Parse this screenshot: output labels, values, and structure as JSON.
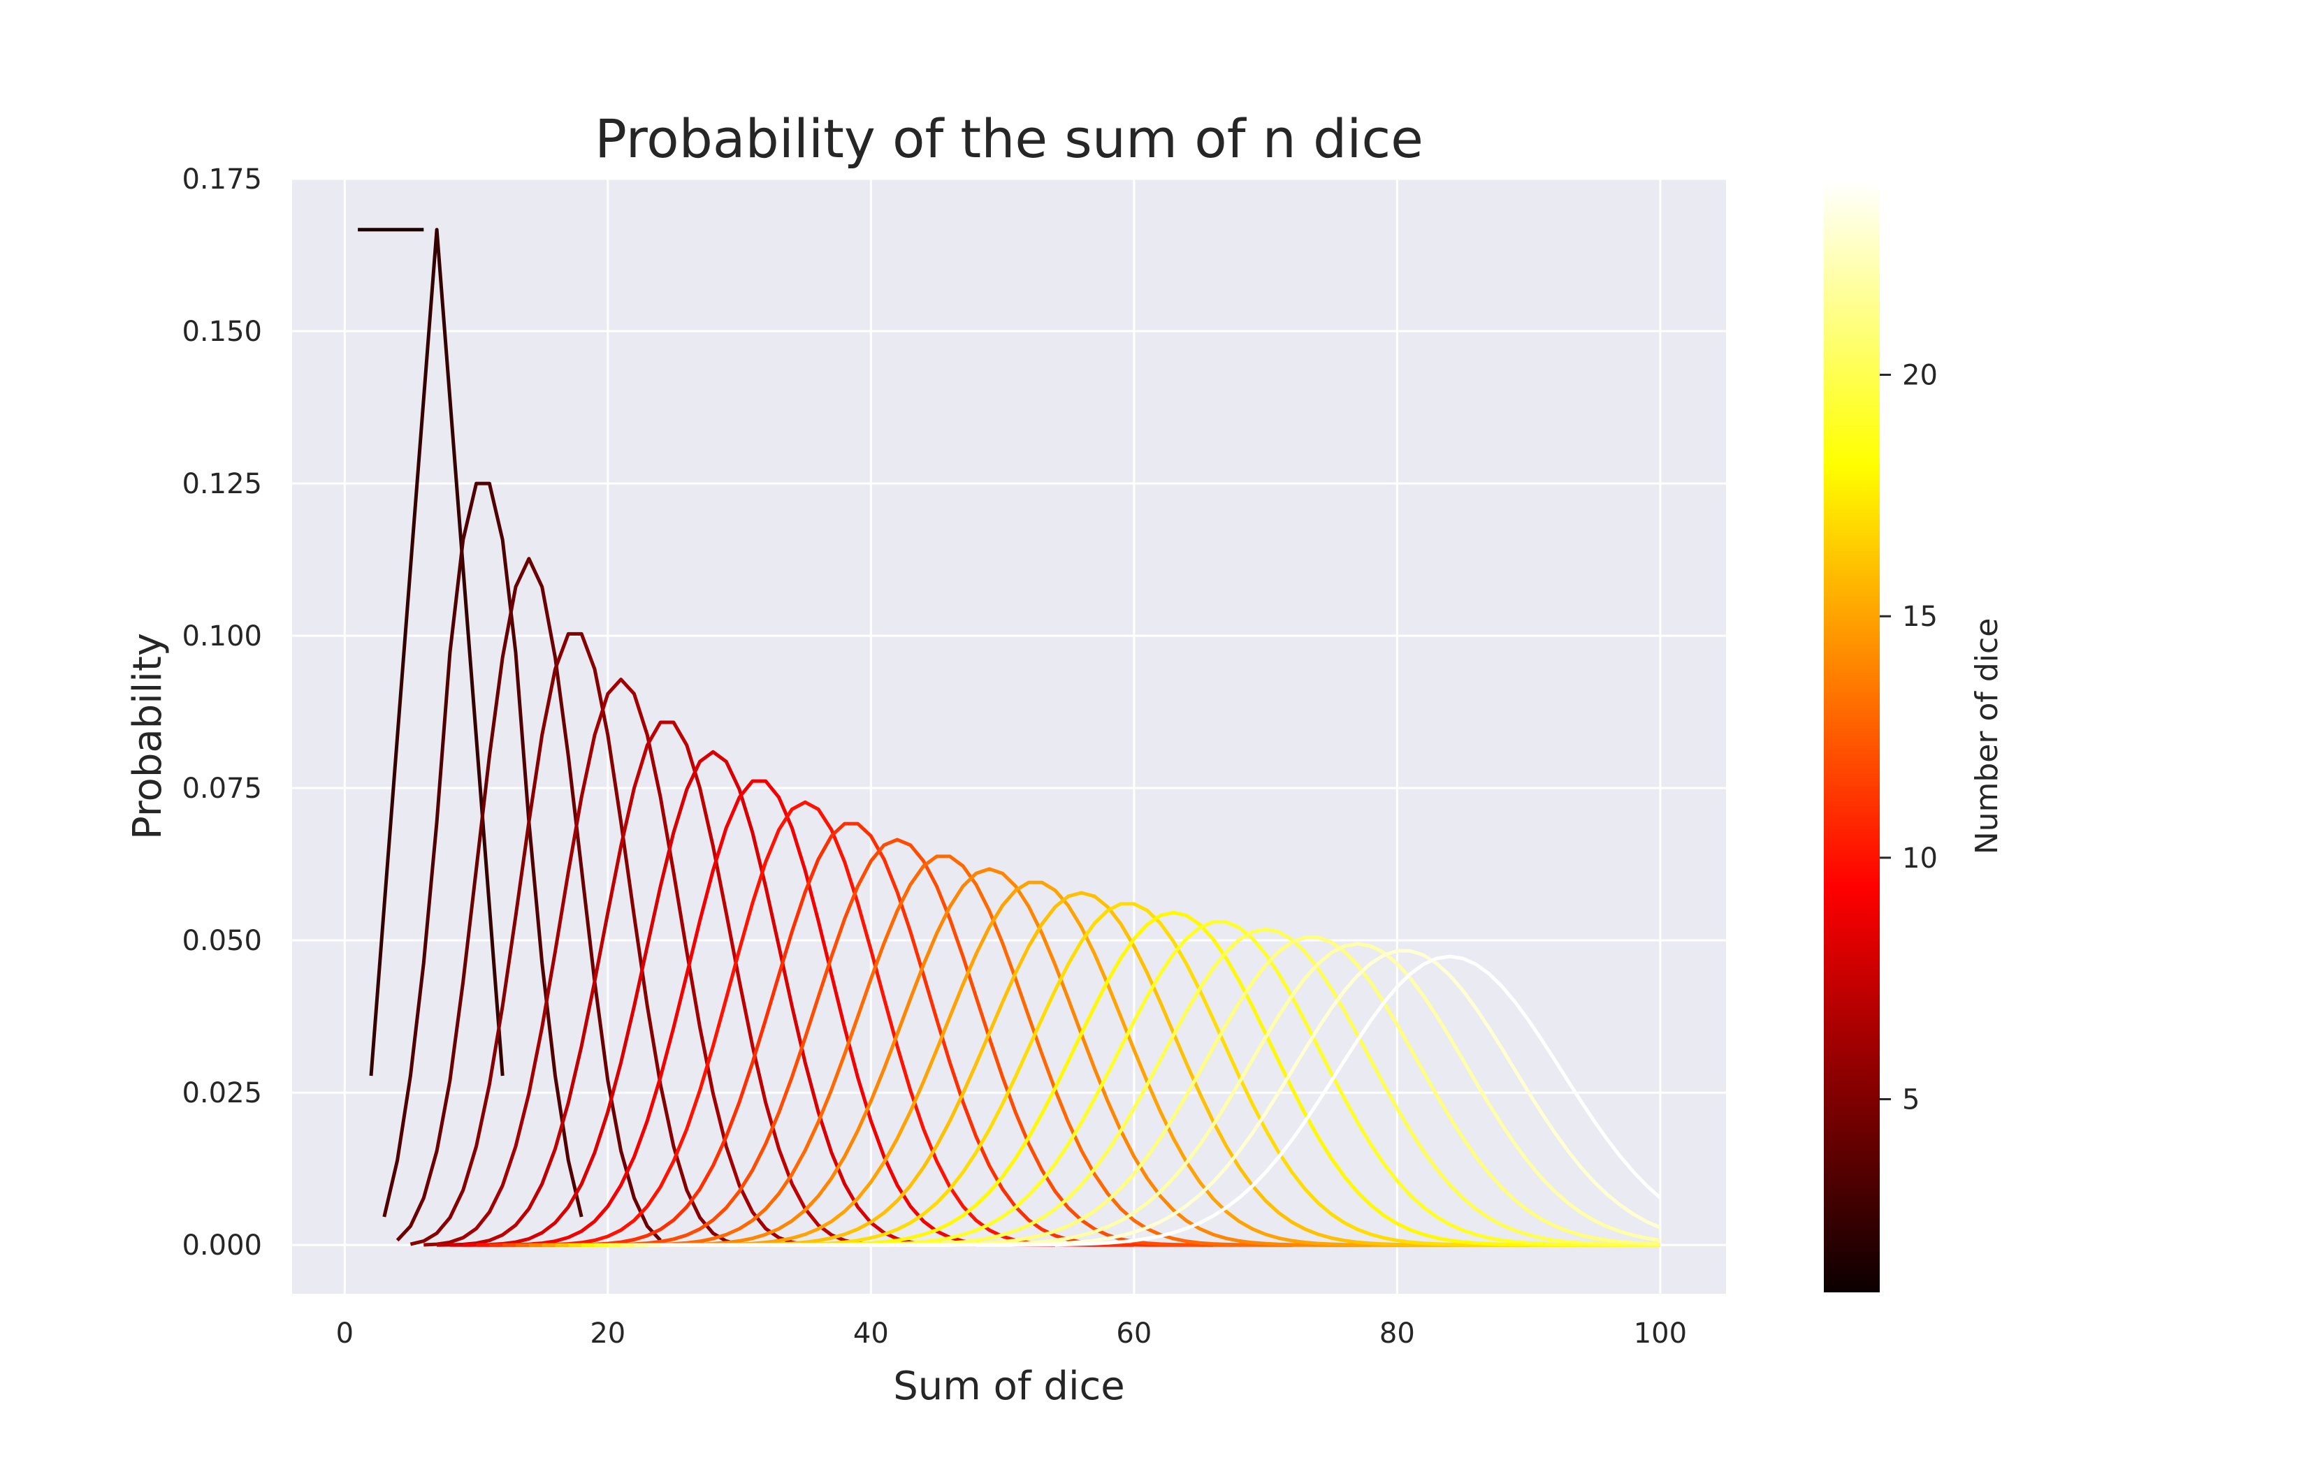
{
  "chart_data": {
    "type": "line",
    "title": "Probability of the sum of n dice",
    "xlabel": "Sum of dice",
    "ylabel": "Probability",
    "xlim": [
      -4,
      105
    ],
    "ylim": [
      -0.008,
      0.175
    ],
    "xticks": [
      0,
      20,
      40,
      60,
      80,
      100
    ],
    "xtick_labels": [
      "0",
      "20",
      "40",
      "60",
      "80",
      "100"
    ],
    "yticks": [
      0.0,
      0.025,
      0.05,
      0.075,
      0.1,
      0.125,
      0.15,
      0.175
    ],
    "ytick_labels": [
      "0.000",
      "0.025",
      "0.050",
      "0.075",
      "0.100",
      "0.125",
      "0.150",
      "0.175"
    ],
    "grid": true,
    "background": "#eaeaf2",
    "dice_faces": 6,
    "series_n": [
      1,
      2,
      3,
      4,
      5,
      6,
      7,
      8,
      9,
      10,
      11,
      12,
      13,
      14,
      15,
      16,
      17,
      18,
      19,
      20,
      21,
      22,
      23,
      24
    ],
    "x_max": 100,
    "colorbar": {
      "label": "Number of dice",
      "colormap": "hot",
      "range": [
        1,
        24
      ],
      "ticks": [
        5,
        10,
        15,
        20
      ],
      "tick_labels": [
        "5",
        "10",
        "15",
        "20"
      ]
    }
  }
}
